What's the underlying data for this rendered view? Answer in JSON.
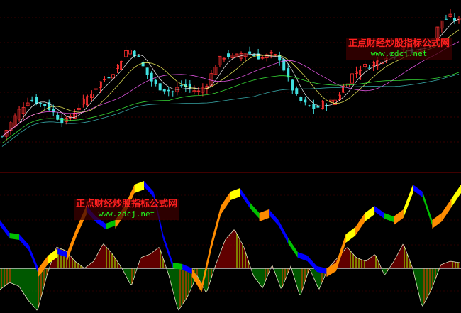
{
  "watermarks": [
    {
      "title": "正点财经炒股指标公式网",
      "url": "www.zdcj.net"
    },
    {
      "title": "正点财经炒股指标公式网",
      "url": "www.zdcj.net"
    }
  ],
  "colors": {
    "background": "#000000",
    "up": "#ff3030",
    "down": "#40e0e0",
    "divider": "#800000",
    "ribbon_up": "#ff8c00",
    "ribbon_peak": "#ffff00",
    "ribbon_down": "#0000ff",
    "ribbon_trough": "#00c000",
    "hist_pos": "#c00000",
    "hist_pos_fall": "#ffff00",
    "hist_neg": "#00b000",
    "hist_neg_rise": "#ff8c00"
  },
  "chart_data": [
    {
      "type": "candlestick",
      "panel": "price",
      "ylim": [
        0,
        240
      ],
      "grid": true,
      "close": [
        50,
        70,
        90,
        105,
        100,
        95,
        80,
        70,
        85,
        100,
        115,
        130,
        140,
        155,
        180,
        170,
        145,
        125,
        120,
        115,
        125,
        120,
        115,
        130,
        160,
        170,
        165,
        175,
        170,
        165,
        170,
        165,
        130,
        105,
        95,
        90,
        100,
        100,
        120,
        140,
        150,
        155,
        160,
        170,
        170,
        185,
        170,
        185,
        190,
        220,
        225,
        220
      ]
    },
    {
      "type": "bar",
      "panel": "oscillator",
      "ylim": [
        -70,
        70
      ],
      "histogram": [
        -30,
        -20,
        -25,
        -45,
        -60,
        -10,
        30,
        25,
        10,
        0,
        10,
        35,
        20,
        0,
        -25,
        15,
        20,
        30,
        -10,
        -60,
        -40,
        -10,
        -35,
        5,
        40,
        55,
        30,
        -10,
        -28,
        5,
        -30,
        3,
        -40,
        0,
        -30,
        0,
        15,
        30,
        15,
        10,
        20,
        -10,
        10,
        35,
        0,
        -55,
        -30,
        5,
        10,
        8
      ],
      "ribbon": [
        {
          "v": 68,
          "c": "down"
        },
        {
          "v": 50,
          "c": "down"
        },
        {
          "v": 48,
          "c": "trough"
        },
        {
          "v": 33,
          "c": "down"
        },
        {
          "v": 0,
          "c": "down"
        },
        {
          "v": 18,
          "c": "up"
        },
        {
          "v": 28,
          "c": "peak"
        },
        {
          "v": 23,
          "c": "down"
        },
        {
          "v": 58,
          "c": "up"
        },
        {
          "v": 88,
          "c": "up"
        },
        {
          "v": 73,
          "c": "down"
        },
        {
          "v": 63,
          "c": "down"
        },
        {
          "v": 68,
          "c": "trough"
        },
        {
          "v": 88,
          "c": "up"
        },
        {
          "v": 118,
          "c": "up"
        },
        {
          "v": 123,
          "c": "peak"
        },
        {
          "v": 108,
          "c": "down"
        },
        {
          "v": 48,
          "c": "down"
        },
        {
          "v": 8,
          "c": "down"
        },
        {
          "v": 6,
          "c": "trough"
        },
        {
          "v": 0,
          "c": "down"
        },
        {
          "v": -22,
          "c": "up"
        },
        {
          "v": 38,
          "c": "up"
        },
        {
          "v": 88,
          "c": "up"
        },
        {
          "v": 108,
          "c": "up"
        },
        {
          "v": 113,
          "c": "peak"
        },
        {
          "v": 93,
          "c": "down"
        },
        {
          "v": 78,
          "c": "trough"
        },
        {
          "v": 83,
          "c": "up"
        },
        {
          "v": 68,
          "c": "down"
        },
        {
          "v": 43,
          "c": "down"
        },
        {
          "v": 23,
          "c": "trough"
        },
        {
          "v": 18,
          "c": "down"
        },
        {
          "v": 3,
          "c": "down"
        },
        {
          "v": 0,
          "c": "down"
        },
        {
          "v": 8,
          "c": "up"
        },
        {
          "v": 48,
          "c": "up"
        },
        {
          "v": 58,
          "c": "peak"
        },
        {
          "v": 78,
          "c": "up"
        },
        {
          "v": 88,
          "c": "peak"
        },
        {
          "v": 78,
          "c": "down"
        },
        {
          "v": 73,
          "c": "trough"
        },
        {
          "v": 83,
          "c": "up"
        },
        {
          "v": 118,
          "c": "peak"
        },
        {
          "v": 108,
          "c": "down"
        },
        {
          "v": 68,
          "c": "trough"
        },
        {
          "v": 78,
          "c": "up"
        },
        {
          "v": 98,
          "c": "up"
        },
        {
          "v": 118,
          "c": "peak"
        }
      ]
    }
  ]
}
